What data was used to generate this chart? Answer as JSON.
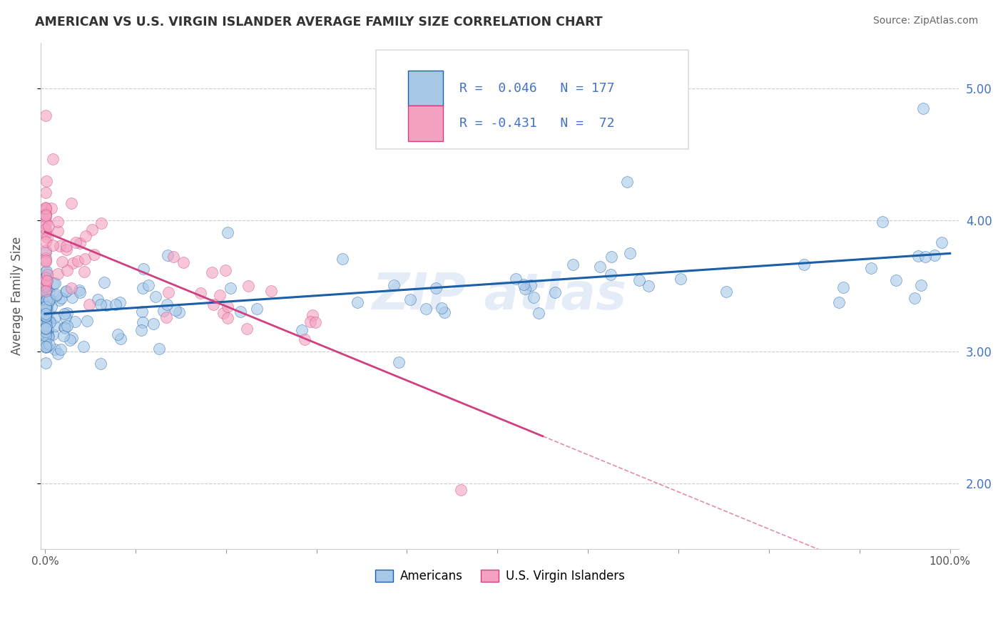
{
  "title": "AMERICAN VS U.S. VIRGIN ISLANDER AVERAGE FAMILY SIZE CORRELATION CHART",
  "source": "Source: ZipAtlas.com",
  "ylabel": "Average Family Size",
  "blue_color": "#a8c8e8",
  "blue_color_line": "#1a5fa8",
  "pink_color": "#f4a0c0",
  "pink_color_line": "#d04080",
  "legend_R_blue": "0.046",
  "legend_N_blue": "177",
  "legend_R_pink": "-0.431",
  "legend_N_pink": "72",
  "watermark": "ZIPAtlas",
  "grid_color": "#cccccc",
  "text_color": "#4472c4",
  "title_color": "#333333",
  "source_color": "#666666"
}
